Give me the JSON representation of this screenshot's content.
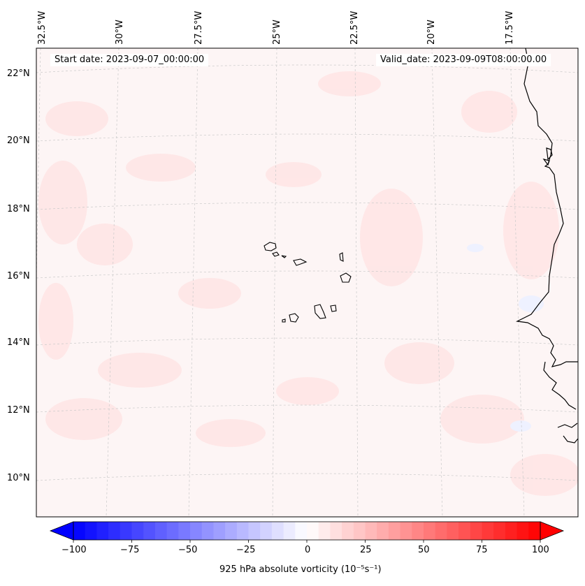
{
  "header": {
    "start_date": "Start date: 2023-09-07_00:00:00",
    "valid_date": "Valid_date: 2023-09-09T08:00:00.00"
  },
  "map": {
    "lon_labels": [
      "32.5°W",
      "30°W",
      "27.5°W",
      "25°W",
      "22.5°W",
      "20°W",
      "17.5°W"
    ],
    "lat_labels": [
      "22°N",
      "20°N",
      "18°N",
      "16°N",
      "14°N",
      "12°N",
      "10°N"
    ],
    "colors": {
      "background": "#fdf5f5",
      "grid": "#c9c9c9",
      "coast": "#000000"
    }
  },
  "colorbar": {
    "title": "925 hPa absolute vorticity (10⁻⁵s⁻¹)",
    "ticks": [
      "−100",
      "−75",
      "−50",
      "−25",
      "0",
      "25",
      "50",
      "75",
      "100"
    ],
    "min": -100,
    "max": 100,
    "step": 5,
    "cmap": "bwr",
    "extend": "both"
  }
}
